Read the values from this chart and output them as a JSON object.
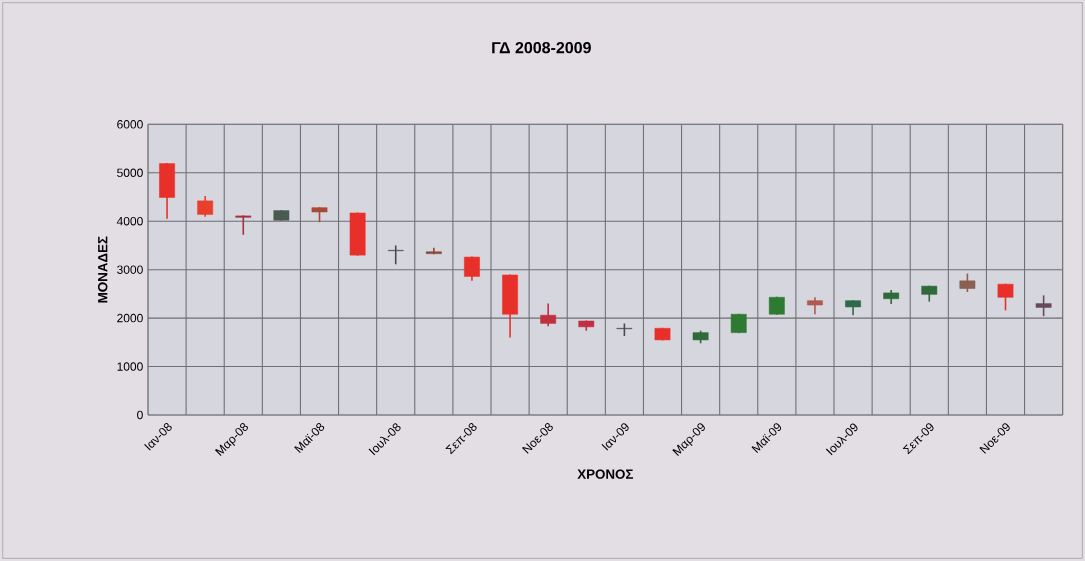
{
  "chart_data": {
    "type": "candlestick",
    "title": "ΓΔ 2008-2009",
    "xlabel": "ΧΡΟΝΟΣ",
    "ylabel": "ΜΟΝΑΔΕΣ",
    "categories": [
      "Ιαν-08",
      null,
      "Μαρ-08",
      null,
      "Μαϊ-08",
      null,
      "Ιουλ-08",
      null,
      "Σεπ-08",
      null,
      "Νοε-08",
      null,
      "Ιαν-09",
      null,
      "Μαρ-09",
      null,
      "Μαϊ-09",
      null,
      "Ιουλ-09",
      null,
      "Σεπ-09",
      null,
      "Νοε-09",
      null
    ],
    "ohlc": [
      [
        5190,
        5200,
        4050,
        4490
      ],
      [
        4420,
        4520,
        4090,
        4140
      ],
      [
        4110,
        4120,
        3720,
        4080
      ],
      [
        4020,
        4230,
        4010,
        4220
      ],
      [
        4280,
        4290,
        3980,
        4190
      ],
      [
        4170,
        4180,
        3290,
        3300
      ],
      [
        3400,
        3500,
        3110,
        3390
      ],
      [
        3370,
        3450,
        3320,
        3330
      ],
      [
        3260,
        3270,
        2770,
        2860
      ],
      [
        2890,
        2900,
        1600,
        2080
      ],
      [
        2060,
        2300,
        1830,
        1890
      ],
      [
        1940,
        1950,
        1740,
        1820
      ],
      [
        1790,
        1890,
        1630,
        1780
      ],
      [
        1790,
        1800,
        1540,
        1550
      ],
      [
        1550,
        1740,
        1480,
        1700
      ],
      [
        1700,
        2090,
        1690,
        2080
      ],
      [
        2080,
        2440,
        2070,
        2430
      ],
      [
        2360,
        2430,
        2080,
        2270
      ],
      [
        2230,
        2370,
        2060,
        2360
      ],
      [
        2400,
        2580,
        2290,
        2520
      ],
      [
        2490,
        2670,
        2340,
        2660
      ],
      [
        2770,
        2920,
        2540,
        2610
      ],
      [
        2700,
        2710,
        2160,
        2430
      ],
      [
        2300,
        2470,
        2040,
        2220
      ]
    ],
    "colors": [
      "#e8302a",
      "#e8402a",
      "#a83040",
      "#4a5a50",
      "#a84a3a",
      "#e8302a",
      "#4a4a50",
      "#8a4a3a",
      "#e8302a",
      "#e8302a",
      "#c03040",
      "#c03040",
      "#4a4a50",
      "#e8302a",
      "#2e6a3a",
      "#2e7a32",
      "#2e7a32",
      "#b05a50",
      "#2e6a4a",
      "#2e6a3a",
      "#2e6a3a",
      "#8a6050",
      "#e8302a",
      "#6a4a5a"
    ],
    "ylim": [
      0,
      6000
    ],
    "yticks": [
      0,
      1000,
      2000,
      3000,
      4000,
      5000,
      6000
    ],
    "grid": true
  }
}
